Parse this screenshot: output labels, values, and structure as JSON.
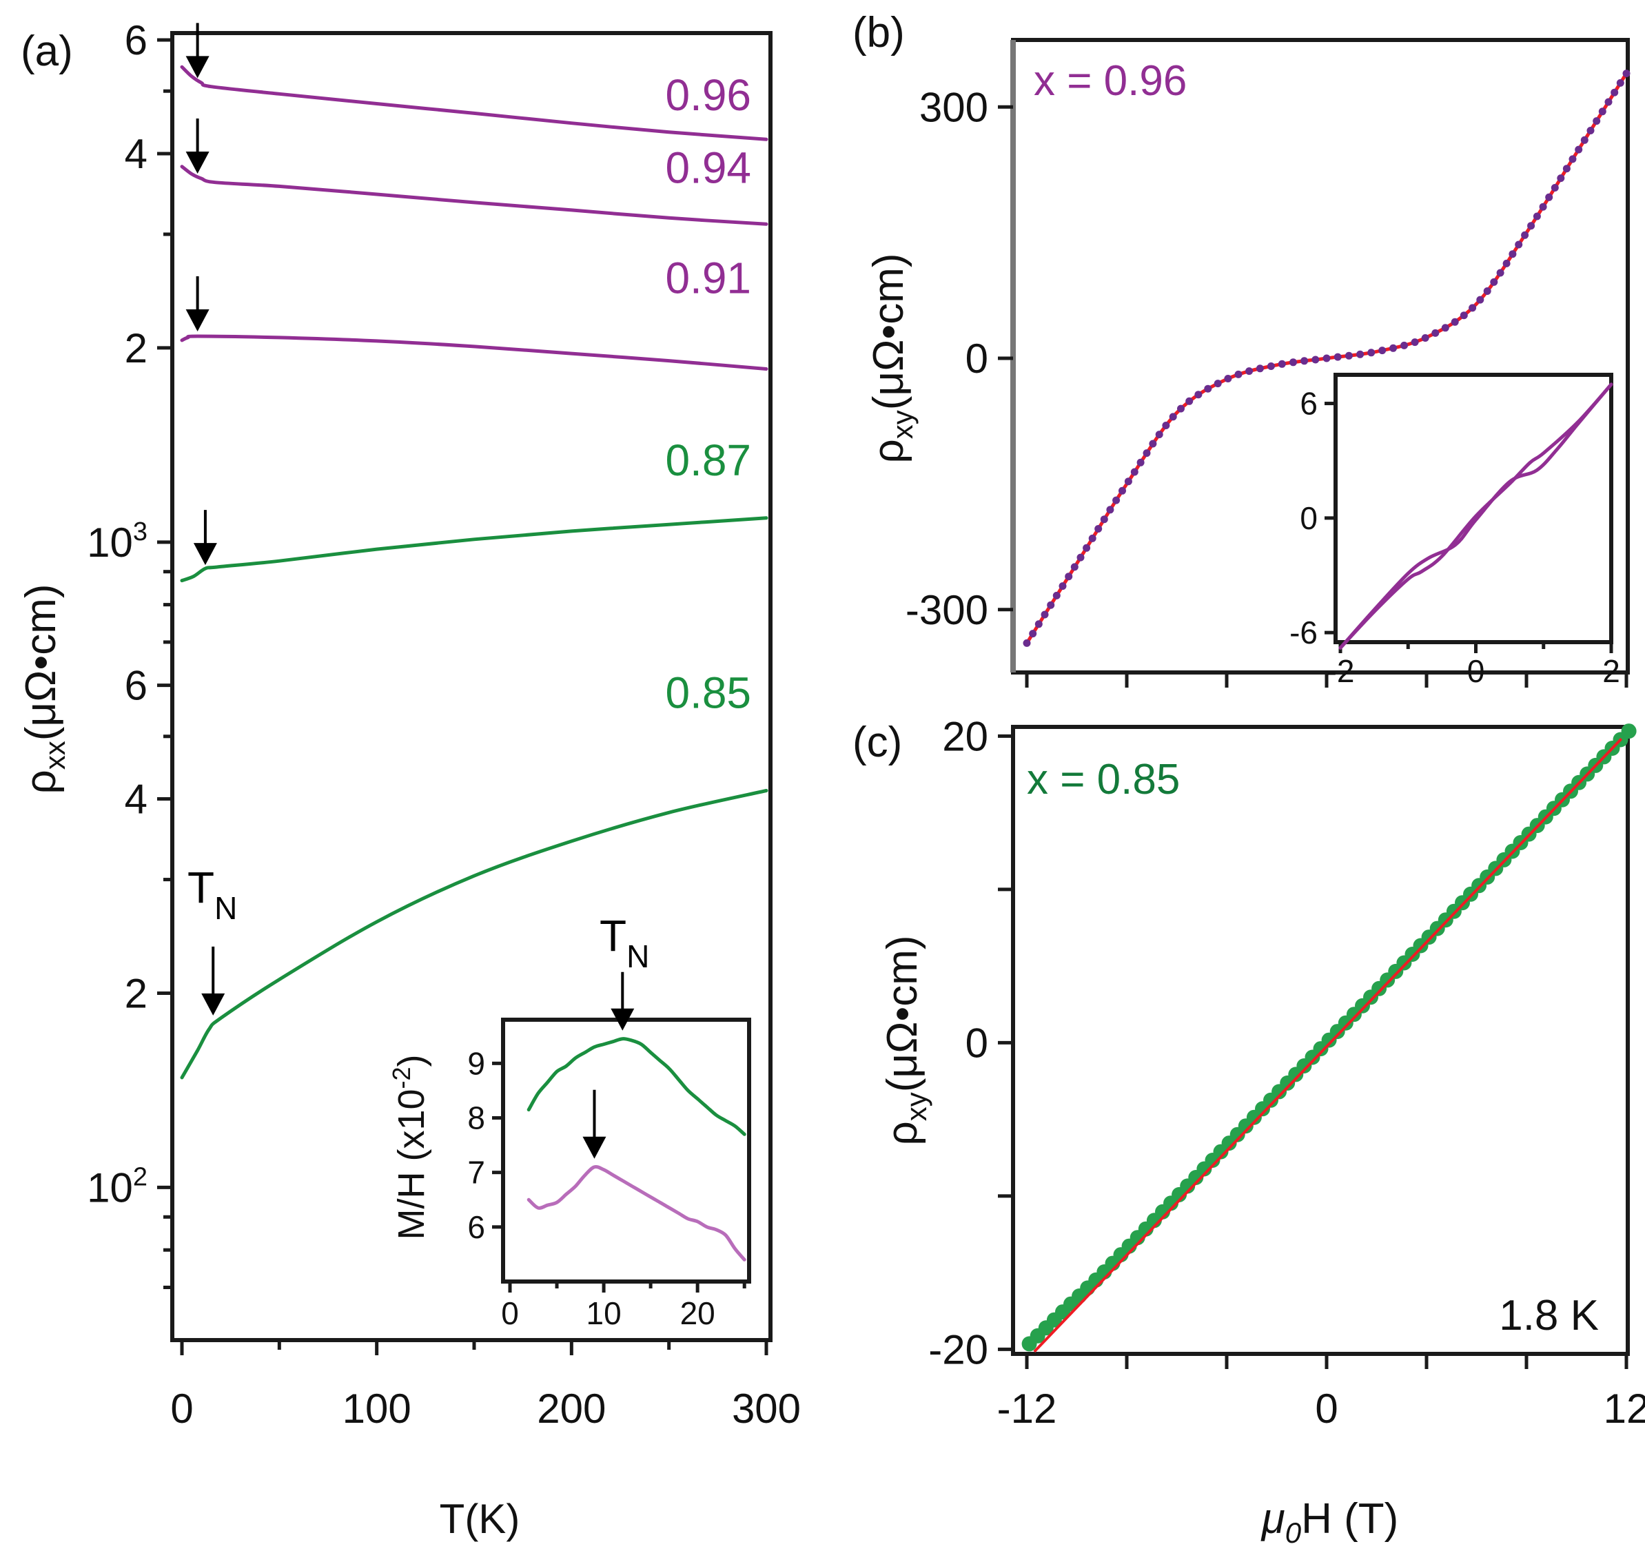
{
  "colors": {
    "purple": "#912e93",
    "light_purple": "#b86dba",
    "green": "#1a8f3f",
    "dark_green": "#137a3a",
    "red": "#ee1c24",
    "marker_purple": "#6a2c8e",
    "marker_green": "#26a14d"
  },
  "chart_data": [
    {
      "panel": "(a)",
      "type": "line",
      "xlabel": "T(K)",
      "ylabel_main": "ρ",
      "ylabel_sub": "xx",
      "ylabel_unit": "(μΩ•cm)",
      "yscale": "log",
      "xlim": [
        -5,
        302
      ],
      "ylim": [
        58,
        6150
      ],
      "x_ticks": [
        0,
        100,
        200,
        300
      ],
      "x_tick_labels": [
        "0",
        "100",
        "200",
        "300"
      ],
      "y_major_ticks": [
        {
          "value": 6000,
          "label": "6"
        },
        {
          "value": 4000,
          "label": "4"
        },
        {
          "value": 2000,
          "label": "2"
        },
        {
          "value": 1000,
          "label": "10",
          "exp": "3"
        },
        {
          "value": 600,
          "label": "6"
        },
        {
          "value": 400,
          "label": "4"
        },
        {
          "value": 200,
          "label": "2"
        },
        {
          "value": 100,
          "label": "10",
          "exp": "2"
        }
      ],
      "y_minor_ticks": [
        5000,
        3000,
        900,
        800,
        700,
        500,
        300,
        90,
        80,
        70
      ],
      "series": [
        {
          "name": "0.96",
          "color_key": "purple",
          "points": [
            [
              0,
              5450
            ],
            [
              5,
              5270
            ],
            [
              10,
              5150
            ],
            [
              15,
              5080
            ],
            [
              50,
              4950
            ],
            [
              100,
              4780
            ],
            [
              150,
              4620
            ],
            [
              200,
              4460
            ],
            [
              250,
              4320
            ],
            [
              300,
              4210
            ]
          ],
          "arrow_T": 8,
          "arrow_rho": 5160
        },
        {
          "name": "0.94",
          "color_key": "purple",
          "points": [
            [
              0,
              3820
            ],
            [
              5,
              3720
            ],
            [
              10,
              3660
            ],
            [
              17,
              3610
            ],
            [
              50,
              3560
            ],
            [
              100,
              3460
            ],
            [
              150,
              3360
            ],
            [
              200,
              3270
            ],
            [
              250,
              3180
            ],
            [
              300,
              3110
            ]
          ],
          "arrow_T": 8,
          "arrow_rho": 3670
        },
        {
          "name": "0.91",
          "color_key": "purple",
          "points": [
            [
              0,
              2055
            ],
            [
              3,
              2075
            ],
            [
              8,
              2085
            ],
            [
              50,
              2075
            ],
            [
              100,
              2050
            ],
            [
              150,
              2010
            ],
            [
              200,
              1960
            ],
            [
              250,
              1910
            ],
            [
              300,
              1855
            ]
          ],
          "arrow_T": 8,
          "arrow_rho": 2090
        },
        {
          "name": "0.87",
          "color_key": "green",
          "points": [
            [
              0,
              872
            ],
            [
              6,
              885
            ],
            [
              12,
              910
            ],
            [
              18,
              915
            ],
            [
              50,
              935
            ],
            [
              100,
              975
            ],
            [
              150,
              1010
            ],
            [
              200,
              1040
            ],
            [
              250,
              1065
            ],
            [
              300,
              1090
            ]
          ],
          "arrow_T": 12,
          "arrow_rho": 908
        },
        {
          "name": "0.85",
          "color_key": "green",
          "points": [
            [
              0,
              148
            ],
            [
              8,
              163
            ],
            [
              14,
              176
            ],
            [
              20,
              183
            ],
            [
              50,
              210
            ],
            [
              100,
              258
            ],
            [
              150,
              304
            ],
            [
              200,
              344
            ],
            [
              250,
              381
            ],
            [
              300,
              412
            ]
          ],
          "arrow_T": 16,
          "arrow_rho": 182
        }
      ],
      "annotations": {
        "TN_label": "T",
        "TN_sub": "N"
      },
      "inset": {
        "type": "line",
        "ylabel_main": "M/H (x10",
        "ylabel_exp": "-2",
        "ylabel_close": ")",
        "xlim": [
          0,
          25.5
        ],
        "ylim": [
          5,
          9.8
        ],
        "x_ticks": [
          0,
          10,
          20
        ],
        "x_tick_labels": [
          "0",
          "10",
          "20"
        ],
        "y_ticks": [
          6,
          7,
          8,
          9
        ],
        "y_tick_labels": [
          "6",
          "7",
          "8",
          "9"
        ],
        "TN_label": "T",
        "TN_sub": "N",
        "series": [
          {
            "name": "0.85",
            "color_key": "green",
            "points": [
              [
                2,
                8.15
              ],
              [
                3,
                8.45
              ],
              [
                4,
                8.65
              ],
              [
                5,
                8.85
              ],
              [
                6,
                8.95
              ],
              [
                7,
                9.1
              ],
              [
                8,
                9.2
              ],
              [
                9,
                9.3
              ],
              [
                10,
                9.35
              ],
              [
                11,
                9.4
              ],
              [
                12,
                9.45
              ],
              [
                13,
                9.42
              ],
              [
                14,
                9.35
              ],
              [
                15,
                9.2
              ],
              [
                16,
                9.05
              ],
              [
                17,
                8.9
              ],
              [
                18,
                8.7
              ],
              [
                19,
                8.5
              ],
              [
                20,
                8.35
              ],
              [
                21,
                8.2
              ],
              [
                22,
                8.05
              ],
              [
                23,
                7.95
              ],
              [
                24,
                7.85
              ],
              [
                25,
                7.7
              ]
            ],
            "arrow_T": 12
          },
          {
            "name": "0.96",
            "color_key": "light_purple",
            "points": [
              [
                2,
                6.5
              ],
              [
                3,
                6.35
              ],
              [
                4,
                6.4
              ],
              [
                5,
                6.45
              ],
              [
                6,
                6.6
              ],
              [
                7,
                6.75
              ],
              [
                8,
                6.95
              ],
              [
                9,
                7.1
              ],
              [
                10,
                7.05
              ],
              [
                11,
                6.95
              ],
              [
                12,
                6.85
              ],
              [
                13,
                6.75
              ],
              [
                14,
                6.65
              ],
              [
                15,
                6.55
              ],
              [
                16,
                6.45
              ],
              [
                17,
                6.35
              ],
              [
                18,
                6.25
              ],
              [
                19,
                6.15
              ],
              [
                20,
                6.1
              ],
              [
                21,
                6.0
              ],
              [
                22,
                5.95
              ],
              [
                23,
                5.85
              ],
              [
                24,
                5.6
              ],
              [
                25,
                5.4
              ]
            ],
            "arrow_T": 9
          }
        ]
      }
    },
    {
      "panel": "(b)",
      "type": "scatter",
      "legend": "x = 0.96",
      "xlabel_main": "μ",
      "xlabel_sub": "0",
      "xlabel_rest": "H (T)",
      "ylabel_main": "ρ",
      "ylabel_sub": "xy",
      "ylabel_unit": "(μΩ•cm)",
      "xlim": [
        -12.6,
        12.6
      ],
      "ylim": [
        -375,
        380
      ],
      "x_ticks": [
        -12,
        -8,
        -4,
        0,
        4,
        8,
        12
      ],
      "y_ticks": [
        -300,
        0,
        300
      ],
      "y_tick_labels": [
        "-300",
        "0",
        "300"
      ],
      "fit_points": [
        [
          -12,
          -340
        ],
        [
          -10,
          -245
        ],
        [
          -8,
          -150
        ],
        [
          -6,
          -65
        ],
        [
          -4,
          -25
        ],
        [
          -2,
          -8
        ],
        [
          0,
          0
        ],
        [
          2,
          8
        ],
        [
          4,
          25
        ],
        [
          6,
          65
        ],
        [
          8,
          150
        ],
        [
          10,
          245
        ],
        [
          12,
          340
        ]
      ],
      "inset": {
        "type": "line",
        "xlim": [
          -2,
          2
        ],
        "ylim": [
          -6.5,
          7.5
        ],
        "x_ticks": [
          -2,
          0,
          2
        ],
        "x_tick_labels": [
          "-2",
          "0",
          "2"
        ],
        "y_ticks": [
          -6,
          0,
          6
        ],
        "y_tick_labels": [
          "-6",
          "0",
          "6"
        ],
        "branch_up": [
          [
            -2,
            -6.8
          ],
          [
            -1.5,
            -4.9
          ],
          [
            -1.0,
            -3.2
          ],
          [
            -0.8,
            -2.8
          ],
          [
            -0.5,
            -2.0
          ],
          [
            0,
            0.1
          ],
          [
            0.5,
            1.8
          ],
          [
            0.8,
            2.9
          ],
          [
            1.0,
            3.4
          ],
          [
            1.5,
            5.0
          ],
          [
            2,
            7.0
          ]
        ],
        "branch_down": [
          [
            -2,
            -6.8
          ],
          [
            -1.5,
            -4.8
          ],
          [
            -1.0,
            -2.9
          ],
          [
            -0.7,
            -2.1
          ],
          [
            -0.3,
            -1.4
          ],
          [
            0,
            -0.1
          ],
          [
            0.5,
            1.9
          ],
          [
            0.9,
            2.5
          ],
          [
            1.2,
            3.6
          ],
          [
            1.5,
            4.9
          ],
          [
            2,
            7.0
          ]
        ]
      }
    },
    {
      "panel": "(c)",
      "type": "scatter",
      "legend": "x = 0.85",
      "temperature": "1.8 K",
      "xlabel_main": "μ",
      "xlabel_sub": "0",
      "xlabel_rest": "H (T)",
      "ylabel_main": "ρ",
      "ylabel_sub": "xy",
      "ylabel_unit": "(μΩ•cm)",
      "xlim": [
        -12.6,
        12.6
      ],
      "ylim": [
        -20.3,
        20.6
      ],
      "x_ticks": [
        -12,
        -8,
        -4,
        0,
        4,
        8,
        12
      ],
      "x_tick_labels": [
        "-12",
        "0",
        "12"
      ],
      "x_tick_label_values": [
        -12,
        0,
        12
      ],
      "y_ticks": [
        -20,
        -10,
        0,
        10,
        20
      ],
      "y_tick_labels": [
        "-20",
        "0",
        "20"
      ],
      "y_tick_label_values": [
        -20,
        0,
        20
      ],
      "slope_per_T": 1.68,
      "fit_range": [
        -11.7,
        11.8
      ],
      "data_range": [
        -11.9,
        12.1
      ]
    }
  ]
}
